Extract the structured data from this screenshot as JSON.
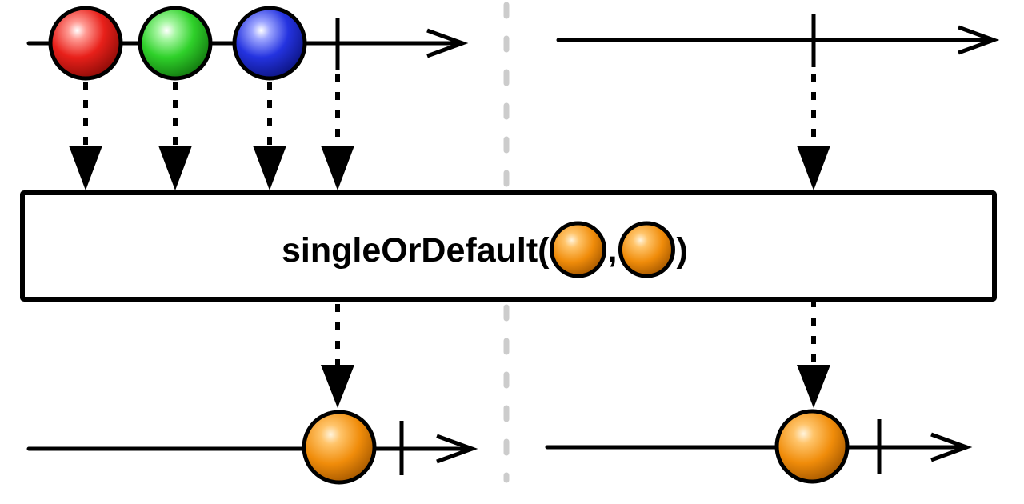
{
  "operator": {
    "name": "singleOrDefault(",
    "separator": ",",
    "close": ")"
  },
  "colors": {
    "red_marble": "#e8201a",
    "green_marble": "#2fd12a",
    "blue_marble": "#2433e0",
    "orange_marble": "#f08c0a",
    "line": "#000000",
    "divider": "#cccccc",
    "box_fill": "#ffffff"
  },
  "icons": [
    "marble-red",
    "marble-green",
    "marble-blue",
    "marble-orange",
    "completion-tick",
    "arrow-down",
    "arrow-right"
  ]
}
